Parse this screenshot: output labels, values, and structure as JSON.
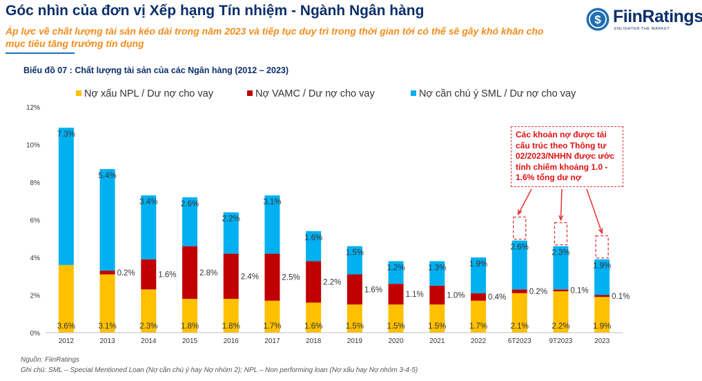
{
  "header": {
    "title": "Góc nhìn của đơn vị Xếp hạng Tín nhiệm - Ngành Ngân hàng",
    "subtitle": "Áp lực về chất lượng tài sản kéo dài trong năm 2023 và tiếp tục duy trì trong thời gian tới có thể sẽ gây khó khăn cho mục tiêu tăng trưởng tín dụng"
  },
  "logo": {
    "name": "FiinRatings",
    "tagline": "ENLIGHTEN THE MARKET",
    "symbol": "$"
  },
  "annotation": "Các khoản nợ được tái cấu trúc theo Thông tư 02/2023/NHHN được ước tính chiếm khoảng 1.0 - 1.6% tổng dư nợ",
  "footer": {
    "source": "Nguồn: FiinRatings",
    "note": "Ghi chú: SML – Special Mentioned Loan (Nợ cần chú ý hay Nợ nhóm 2); NPL – Non performing loan (Nợ xấu hay Nợ nhóm 3-4-5)"
  },
  "colors": {
    "npl": "#ffc000",
    "vamc": "#c00000",
    "sml": "#00b0f0",
    "annotation": "#e53030",
    "title": "#0b2f6a",
    "subtitle": "#f28c1b"
  },
  "chart_data": {
    "type": "bar",
    "stacked": true,
    "title": "Biểu đồ 07 : Chất lượng tài sản của các Ngân hàng (2012 – 2023)",
    "categories": [
      "2012",
      "2013",
      "2014",
      "2015",
      "2016",
      "2017",
      "2018",
      "2019",
      "2020",
      "2021",
      "2022",
      "6T2023",
      "9T2023",
      "2023"
    ],
    "series": [
      {
        "name": "Nợ xấu NPL / Dư nợ cho vay",
        "key": "npl",
        "values": [
          3.6,
          3.1,
          2.3,
          1.8,
          1.8,
          1.7,
          1.6,
          1.5,
          1.5,
          1.5,
          1.7,
          2.1,
          2.2,
          1.9
        ],
        "labels": [
          "3.6%",
          "3.1%",
          "2.3%",
          "1.8%",
          "1.8%",
          "1.7%",
          "1.6%",
          "1.5%",
          "1.5%",
          "1.5%",
          "1.7%",
          "2.1%",
          "2.2%",
          "1.9%"
        ]
      },
      {
        "name": "Nợ VAMC / Dư nợ cho vay",
        "key": "vamc",
        "values": [
          0,
          0.2,
          1.6,
          2.8,
          2.4,
          2.5,
          2.2,
          1.6,
          1.1,
          1.0,
          0.4,
          0.2,
          0.1,
          0.1
        ],
        "labels": [
          "",
          "0.2%",
          "1.6%",
          "2.8%",
          "2.4%",
          "2.5%",
          "2.2%",
          "1.6%",
          "1.1%",
          "1.0%",
          "0.4%",
          "0.2%",
          "0.1%",
          "0.1%"
        ]
      },
      {
        "name": "Nợ cần chú ý SML / Dư nợ cho vay",
        "key": "sml",
        "values": [
          7.3,
          5.4,
          3.4,
          2.6,
          2.2,
          3.1,
          1.6,
          1.5,
          1.2,
          1.3,
          1.9,
          2.6,
          2.3,
          1.9
        ],
        "labels": [
          "7.3%",
          "5.4%",
          "3.4%",
          "2.6%",
          "2.2%",
          "3.1%",
          "1.6%",
          "1.5%",
          "1.2%",
          "1.3%",
          "1.9%",
          "2.6%",
          "2.3%",
          "1.9%"
        ]
      }
    ],
    "y_ticks": [
      "0%",
      "2%",
      "4%",
      "6%",
      "8%",
      "10%",
      "12%"
    ],
    "ylim": [
      0,
      12
    ],
    "legend": "top"
  }
}
